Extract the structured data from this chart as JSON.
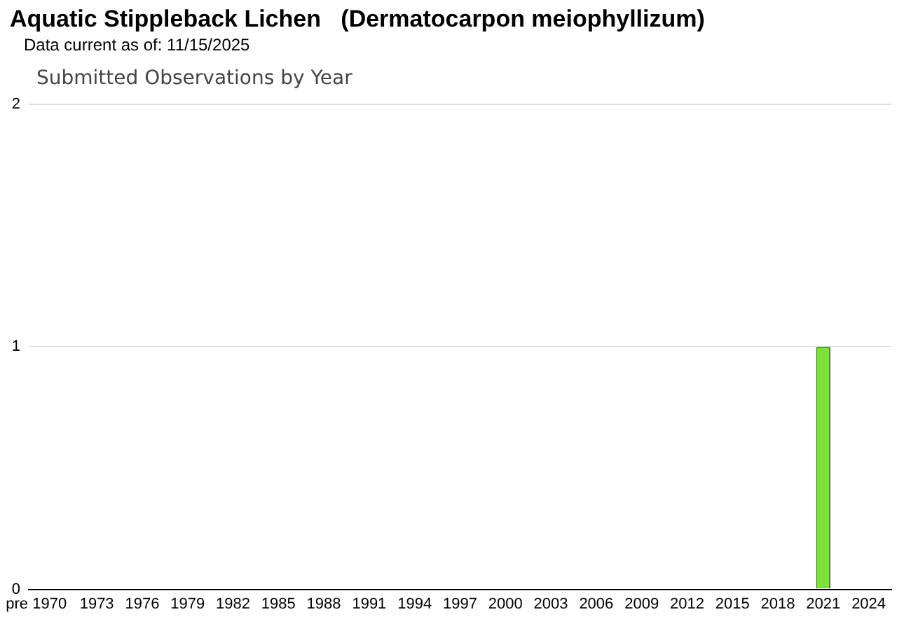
{
  "chart_data": {
    "type": "bar",
    "title": "Aquatic Stippleback Lichen   (Dermatocarpon meiophyllizum)",
    "subtitle": "Data current as of: 11/15/2025",
    "annotations": [
      "Submitted Observations by Year"
    ],
    "categories": [
      "pre 1970",
      null,
      null,
      null,
      "1973",
      null,
      null,
      "1976",
      null,
      null,
      "1979",
      null,
      null,
      "1982",
      null,
      null,
      "1985",
      null,
      null,
      "1988",
      null,
      null,
      "1991",
      null,
      null,
      "1994",
      null,
      null,
      "1997",
      null,
      null,
      "2000",
      null,
      null,
      "2003",
      null,
      null,
      "2006",
      null,
      null,
      "2009",
      null,
      null,
      "2012",
      null,
      null,
      "2015",
      null,
      null,
      "2018",
      null,
      null,
      "2021",
      null,
      null,
      "2024",
      null
    ],
    "values": [
      0,
      0,
      0,
      0,
      0,
      0,
      0,
      0,
      0,
      0,
      0,
      0,
      0,
      0,
      0,
      0,
      0,
      0,
      0,
      0,
      0,
      0,
      0,
      0,
      0,
      0,
      0,
      0,
      0,
      0,
      0,
      0,
      0,
      0,
      0,
      0,
      0,
      0,
      0,
      0,
      0,
      0,
      0,
      0,
      0,
      0,
      0,
      0,
      0,
      0,
      0,
      0,
      1,
      0,
      0,
      0,
      0
    ],
    "color": "#7ee03a",
    "ylim": [
      0,
      2
    ],
    "yticks": [
      0,
      1,
      2
    ],
    "grid": "y",
    "legend": false
  }
}
